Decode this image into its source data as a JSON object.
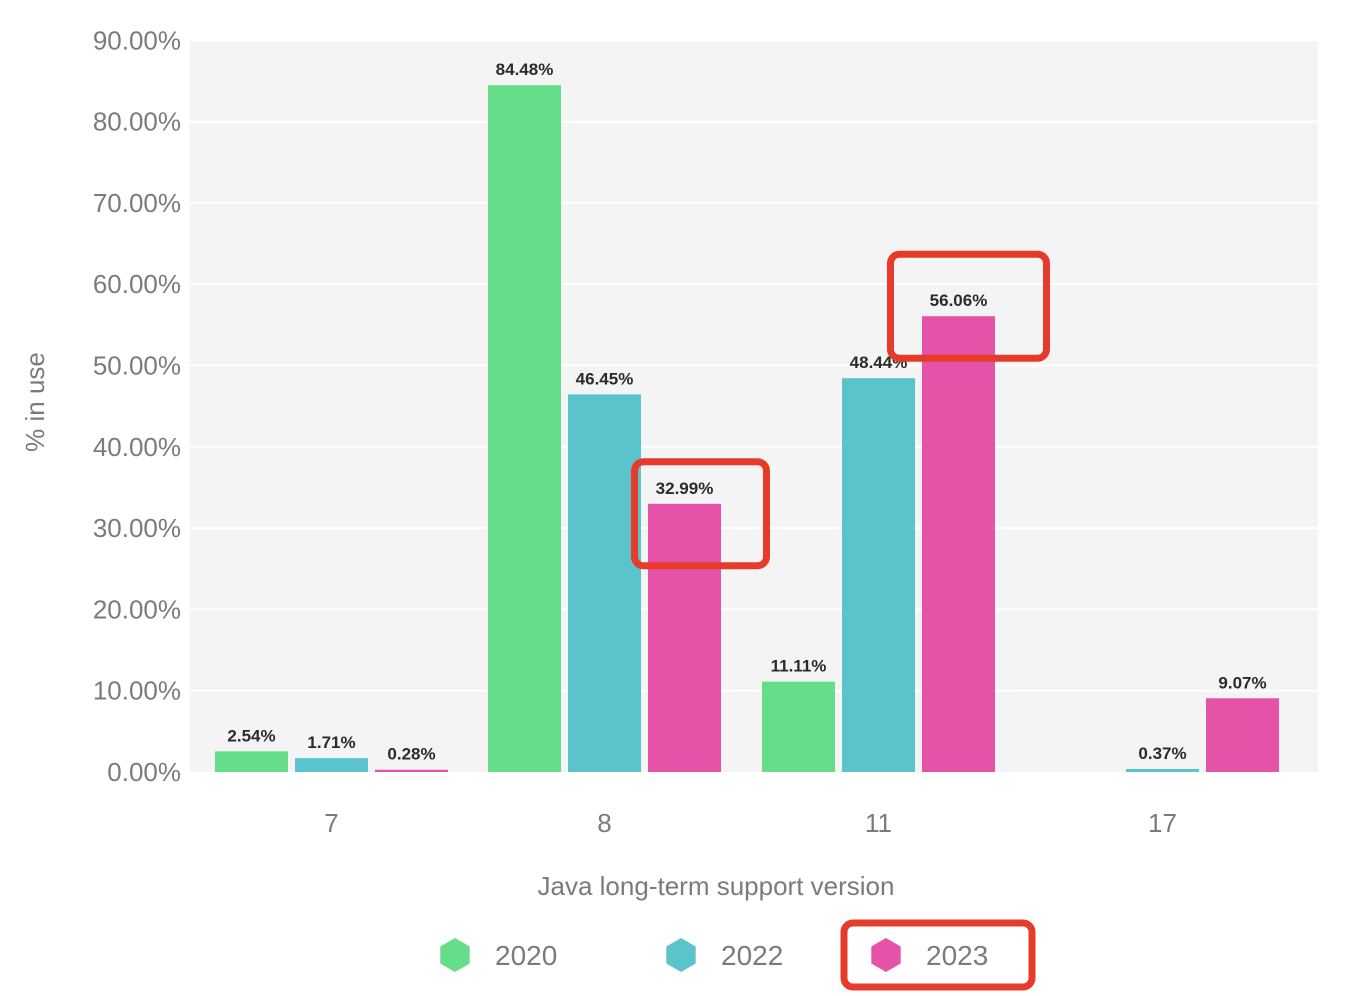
{
  "chart_data": {
    "type": "bar",
    "title": "",
    "xlabel": "Java long-term support version",
    "ylabel": "% in use",
    "categories": [
      "7",
      "8",
      "11",
      "17"
    ],
    "ylim": [
      0,
      90
    ],
    "yticks": [
      0,
      10,
      20,
      30,
      40,
      50,
      60,
      70,
      80,
      90
    ],
    "ytick_labels": [
      "0.00%",
      "10.00%",
      "20.00%",
      "30.00%",
      "40.00%",
      "50.00%",
      "60.00%",
      "70.00%",
      "80.00%",
      "90.00%"
    ],
    "grid": true,
    "legend_position": "bottom-center",
    "series": [
      {
        "name": "2020",
        "color": "#66dd88",
        "values": [
          2.54,
          84.48,
          11.11,
          null
        ],
        "labels": [
          "2.54%",
          "84.48%",
          "11.11%",
          ""
        ]
      },
      {
        "name": "2022",
        "color": "#5ac3cc",
        "values": [
          1.71,
          46.45,
          48.44,
          0.37
        ],
        "labels": [
          "1.71%",
          "46.45%",
          "48.44%",
          "0.37%"
        ]
      },
      {
        "name": "2023",
        "color": "#e553a8",
        "values": [
          0.28,
          32.99,
          56.06,
          9.07
        ],
        "labels": [
          "0.28%",
          "32.99%",
          "56.06%",
          "9.07%"
        ]
      }
    ],
    "annotations": [
      {
        "type": "highlight-box",
        "color": "#e63b2a",
        "target": "data-label",
        "series": "2023",
        "category": "8"
      },
      {
        "type": "highlight-box",
        "color": "#e63b2a",
        "target": "data-label",
        "series": "2023",
        "category": "11"
      },
      {
        "type": "highlight-box",
        "color": "#e63b2a",
        "target": "legend-item",
        "series": "2023"
      }
    ]
  },
  "colors": {
    "plot_background": "#f4f4f4",
    "gridline": "#ffffff",
    "highlight": "#e63b2a",
    "text_muted": "#7b7b7b",
    "text_dark": "#2b2b2b"
  }
}
